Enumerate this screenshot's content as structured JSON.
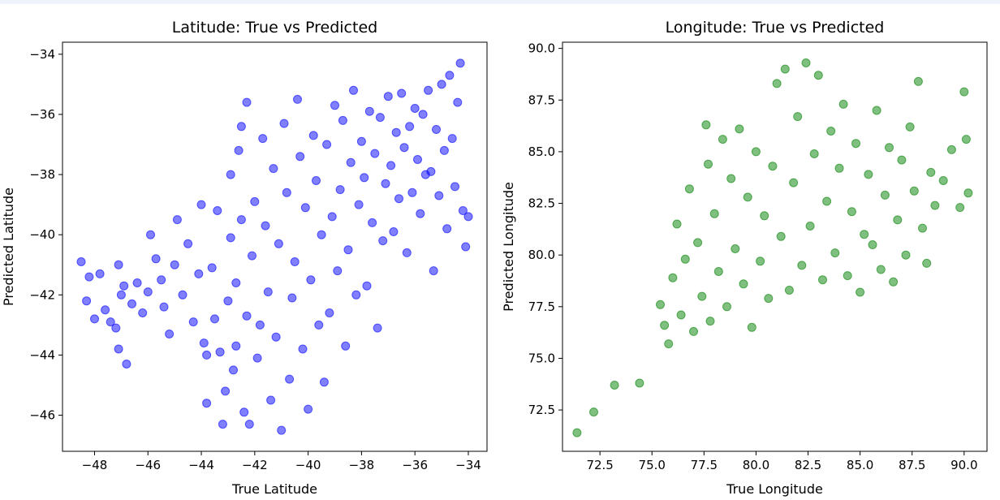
{
  "chart_data": [
    {
      "type": "scatter",
      "title": "Latitude: True vs Predicted",
      "xlabel": "True Latitude",
      "ylabel": "Predicted Latitude",
      "xlim": [
        -49.2,
        -33.3
      ],
      "ylim": [
        -47.2,
        -33.6
      ],
      "xticks": [
        -48,
        -46,
        -44,
        -42,
        -40,
        -38,
        -36,
        -34
      ],
      "yticks": [
        -46,
        -44,
        -42,
        -40,
        -38,
        -36,
        -34
      ],
      "tick_labels_x": [
        "−48",
        "−46",
        "−44",
        "−42",
        "−40",
        "−38",
        "−36",
        "−34"
      ],
      "tick_labels_y": [
        "−46",
        "−44",
        "−42",
        "−40",
        "−38",
        "−36",
        "−34"
      ],
      "color": "#0000ff",
      "alpha": 0.5,
      "grid": false,
      "points": [
        [
          -48.5,
          -40.9
        ],
        [
          -48.2,
          -41.4
        ],
        [
          -48.3,
          -42.2
        ],
        [
          -48.0,
          -42.8
        ],
        [
          -47.8,
          -41.3
        ],
        [
          -47.6,
          -42.5
        ],
        [
          -47.4,
          -42.9
        ],
        [
          -47.1,
          -41.0
        ],
        [
          -47.0,
          -42.0
        ],
        [
          -47.2,
          -43.1
        ],
        [
          -46.9,
          -41.7
        ],
        [
          -46.8,
          -44.3
        ],
        [
          -47.1,
          -43.8
        ],
        [
          -46.6,
          -42.3
        ],
        [
          -46.4,
          -41.6
        ],
        [
          -46.2,
          -42.6
        ],
        [
          -46.0,
          -41.9
        ],
        [
          -45.9,
          -40.0
        ],
        [
          -45.7,
          -40.8
        ],
        [
          -45.5,
          -41.5
        ],
        [
          -45.4,
          -42.4
        ],
        [
          -45.2,
          -43.3
        ],
        [
          -45.0,
          -41.0
        ],
        [
          -44.9,
          -39.5
        ],
        [
          -44.7,
          -42.0
        ],
        [
          -44.5,
          -40.3
        ],
        [
          -44.3,
          -42.9
        ],
        [
          -44.1,
          -41.3
        ],
        [
          -44.0,
          -39.0
        ],
        [
          -43.9,
          -43.6
        ],
        [
          -43.8,
          -44.0
        ],
        [
          -43.8,
          -45.6
        ],
        [
          -43.6,
          -41.1
        ],
        [
          -43.5,
          -42.8
        ],
        [
          -43.4,
          -39.2
        ],
        [
          -43.3,
          -43.9
        ],
        [
          -43.2,
          -46.3
        ],
        [
          -43.1,
          -45.2
        ],
        [
          -43.0,
          -42.2
        ],
        [
          -42.9,
          -40.1
        ],
        [
          -42.9,
          -38.0
        ],
        [
          -42.8,
          -44.5
        ],
        [
          -42.7,
          -43.7
        ],
        [
          -42.7,
          -41.6
        ],
        [
          -42.6,
          -37.2
        ],
        [
          -42.5,
          -36.4
        ],
        [
          -42.5,
          -39.5
        ],
        [
          -42.4,
          -45.9
        ],
        [
          -42.3,
          -42.7
        ],
        [
          -42.3,
          -35.6
        ],
        [
          -42.2,
          -46.3
        ],
        [
          -42.1,
          -40.7
        ],
        [
          -42.0,
          -38.9
        ],
        [
          -41.9,
          -44.1
        ],
        [
          -41.8,
          -43.0
        ],
        [
          -41.7,
          -36.8
        ],
        [
          -41.6,
          -39.7
        ],
        [
          -41.5,
          -41.9
        ],
        [
          -41.4,
          -45.5
        ],
        [
          -41.3,
          -37.8
        ],
        [
          -41.2,
          -43.4
        ],
        [
          -41.1,
          -40.3
        ],
        [
          -41.0,
          -46.5
        ],
        [
          -40.9,
          -36.3
        ],
        [
          -40.8,
          -38.6
        ],
        [
          -40.7,
          -44.8
        ],
        [
          -40.6,
          -42.1
        ],
        [
          -40.5,
          -40.9
        ],
        [
          -40.4,
          -35.5
        ],
        [
          -40.3,
          -37.4
        ],
        [
          -40.2,
          -43.8
        ],
        [
          -40.1,
          -39.1
        ],
        [
          -40.0,
          -45.8
        ],
        [
          -39.9,
          -41.5
        ],
        [
          -39.8,
          -36.7
        ],
        [
          -39.7,
          -38.2
        ],
        [
          -39.6,
          -43.0
        ],
        [
          -39.5,
          -40.0
        ],
        [
          -39.4,
          -44.9
        ],
        [
          -39.3,
          -37.0
        ],
        [
          -39.2,
          -42.6
        ],
        [
          -39.1,
          -39.4
        ],
        [
          -39.0,
          -35.7
        ],
        [
          -38.9,
          -41.2
        ],
        [
          -38.8,
          -38.5
        ],
        [
          -38.7,
          -36.2
        ],
        [
          -38.6,
          -43.7
        ],
        [
          -38.5,
          -40.5
        ],
        [
          -38.4,
          -37.6
        ],
        [
          -38.3,
          -35.2
        ],
        [
          -38.2,
          -42.0
        ],
        [
          -38.1,
          -39.0
        ],
        [
          -38.0,
          -36.9
        ],
        [
          -37.9,
          -38.1
        ],
        [
          -37.8,
          -41.7
        ],
        [
          -37.7,
          -35.9
        ],
        [
          -37.6,
          -39.6
        ],
        [
          -37.5,
          -37.3
        ],
        [
          -37.4,
          -43.1
        ],
        [
          -37.3,
          -36.1
        ],
        [
          -37.2,
          -40.2
        ],
        [
          -37.1,
          -38.3
        ],
        [
          -37.0,
          -35.4
        ],
        [
          -36.9,
          -37.7
        ],
        [
          -36.8,
          -39.9
        ],
        [
          -36.7,
          -36.6
        ],
        [
          -36.6,
          -38.8
        ],
        [
          -36.5,
          -35.3
        ],
        [
          -36.4,
          -37.1
        ],
        [
          -36.3,
          -40.6
        ],
        [
          -36.2,
          -36.4
        ],
        [
          -36.1,
          -38.6
        ],
        [
          -36.0,
          -35.8
        ],
        [
          -35.9,
          -37.5
        ],
        [
          -35.8,
          -39.3
        ],
        [
          -35.7,
          -36.0
        ],
        [
          -35.6,
          -38.0
        ],
        [
          -35.5,
          -35.2
        ],
        [
          -35.4,
          -37.9
        ],
        [
          -35.3,
          -41.2
        ],
        [
          -35.2,
          -36.5
        ],
        [
          -35.1,
          -38.7
        ],
        [
          -35.0,
          -35.0
        ],
        [
          -34.9,
          -37.2
        ],
        [
          -34.8,
          -39.8
        ],
        [
          -34.7,
          -34.7
        ],
        [
          -34.6,
          -36.8
        ],
        [
          -34.5,
          -38.4
        ],
        [
          -34.4,
          -35.6
        ],
        [
          -34.3,
          -34.3
        ],
        [
          -34.2,
          -39.2
        ],
        [
          -34.1,
          -40.4
        ],
        [
          -34.0,
          -39.4
        ]
      ]
    },
    {
      "type": "scatter",
      "title": "Longitude: True vs Predicted",
      "xlabel": "True Longitude",
      "ylabel": "Predicted Longitude",
      "xlim": [
        70.7,
        91.1
      ],
      "ylim": [
        70.5,
        90.3
      ],
      "xticks": [
        72.5,
        75.0,
        77.5,
        80.0,
        82.5,
        85.0,
        87.5,
        90.0
      ],
      "yticks": [
        72.5,
        75.0,
        77.5,
        80.0,
        82.5,
        85.0,
        87.5,
        90.0
      ],
      "tick_labels_x": [
        "72.5",
        "75.0",
        "77.5",
        "80.0",
        "82.5",
        "85.0",
        "87.5",
        "90.0"
      ],
      "tick_labels_y": [
        "72.5",
        "75.0",
        "77.5",
        "80.0",
        "82.5",
        "85.0",
        "87.5",
        "90.0"
      ],
      "color": "#008000",
      "alpha": 0.5,
      "grid": false,
      "points": [
        [
          71.4,
          71.4
        ],
        [
          72.2,
          72.4
        ],
        [
          73.2,
          73.7
        ],
        [
          74.4,
          73.8
        ],
        [
          75.4,
          77.6
        ],
        [
          75.6,
          76.6
        ],
        [
          75.8,
          75.7
        ],
        [
          76.0,
          78.9
        ],
        [
          76.2,
          81.5
        ],
        [
          76.4,
          77.1
        ],
        [
          76.6,
          79.8
        ],
        [
          76.8,
          83.2
        ],
        [
          77.0,
          76.3
        ],
        [
          77.2,
          80.6
        ],
        [
          77.4,
          78.0
        ],
        [
          77.6,
          86.3
        ],
        [
          77.7,
          84.4
        ],
        [
          77.8,
          76.8
        ],
        [
          78.0,
          82.0
        ],
        [
          78.2,
          79.2
        ],
        [
          78.4,
          85.6
        ],
        [
          78.6,
          77.5
        ],
        [
          78.8,
          83.7
        ],
        [
          79.0,
          80.3
        ],
        [
          79.2,
          86.1
        ],
        [
          79.4,
          78.6
        ],
        [
          79.6,
          82.8
        ],
        [
          79.8,
          76.5
        ],
        [
          80.0,
          85.0
        ],
        [
          80.2,
          79.7
        ],
        [
          80.4,
          81.9
        ],
        [
          80.6,
          77.9
        ],
        [
          80.8,
          84.3
        ],
        [
          81.0,
          88.3
        ],
        [
          81.2,
          80.9
        ],
        [
          81.4,
          89.0
        ],
        [
          81.6,
          78.3
        ],
        [
          81.8,
          83.5
        ],
        [
          82.0,
          86.7
        ],
        [
          82.2,
          79.5
        ],
        [
          82.4,
          89.3
        ],
        [
          82.6,
          81.4
        ],
        [
          82.8,
          84.9
        ],
        [
          83.0,
          88.7
        ],
        [
          83.2,
          78.8
        ],
        [
          83.4,
          82.6
        ],
        [
          83.6,
          86.0
        ],
        [
          83.8,
          80.1
        ],
        [
          84.0,
          84.2
        ],
        [
          84.2,
          87.3
        ],
        [
          84.4,
          79.0
        ],
        [
          84.6,
          82.1
        ],
        [
          84.8,
          85.4
        ],
        [
          85.0,
          78.2
        ],
        [
          85.2,
          81.0
        ],
        [
          85.4,
          83.9
        ],
        [
          85.6,
          80.5
        ],
        [
          85.8,
          87.0
        ],
        [
          86.0,
          79.3
        ],
        [
          86.2,
          82.9
        ],
        [
          86.4,
          85.2
        ],
        [
          86.6,
          78.7
        ],
        [
          86.8,
          81.7
        ],
        [
          87.0,
          84.6
        ],
        [
          87.2,
          80.0
        ],
        [
          87.4,
          86.2
        ],
        [
          87.6,
          83.1
        ],
        [
          87.8,
          88.4
        ],
        [
          88.0,
          81.3
        ],
        [
          88.2,
          79.6
        ],
        [
          88.4,
          84.0
        ],
        [
          88.6,
          82.4
        ],
        [
          89.0,
          83.6
        ],
        [
          89.4,
          85.1
        ],
        [
          89.8,
          82.3
        ],
        [
          90.0,
          87.9
        ],
        [
          90.1,
          85.6
        ],
        [
          90.2,
          83.0
        ]
      ]
    }
  ]
}
